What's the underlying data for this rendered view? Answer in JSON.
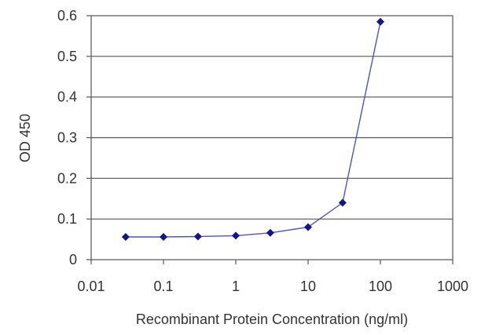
{
  "chart_data": {
    "type": "line",
    "xlabel": "Recombinant Protein Concentration (ng/ml)",
    "ylabel": "OD 450",
    "x_scale": "log",
    "xlim": [
      0.01,
      1000
    ],
    "ylim": [
      0,
      0.6
    ],
    "x_ticks": [
      0.01,
      0.1,
      1,
      10,
      100,
      1000
    ],
    "x_tick_labels": [
      "0.01",
      "0.1",
      "1",
      "10",
      "100",
      "1000"
    ],
    "y_ticks": [
      0,
      0.1,
      0.2,
      0.3,
      0.4,
      0.5,
      0.6
    ],
    "y_tick_labels": [
      "0",
      "0.1",
      "0.2",
      "0.3",
      "0.4",
      "0.5",
      "0.6"
    ],
    "grid": "horizontal",
    "series": [
      {
        "x": [
          0.03,
          0.1,
          0.3,
          1,
          3,
          10,
          30,
          100
        ],
        "y": [
          0.056,
          0.056,
          0.057,
          0.059,
          0.066,
          0.08,
          0.14,
          0.585
        ],
        "color": "#1c1c9c"
      }
    ],
    "line_color": "#4a55c8",
    "marker_color": "#14148c"
  }
}
